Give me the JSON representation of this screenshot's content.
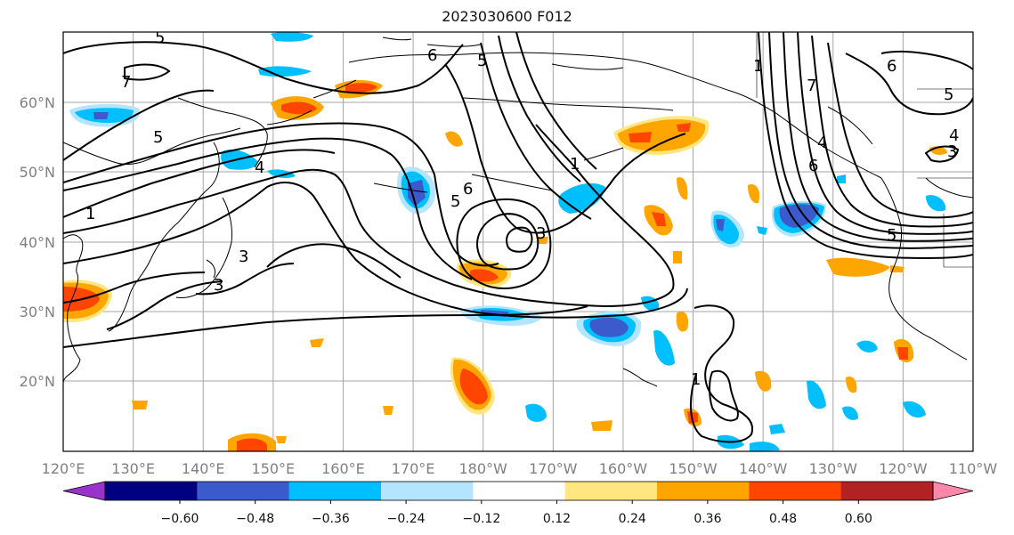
{
  "title": "2023030600 F012",
  "lat_labels": [
    "60°N",
    "50°N",
    "40°N",
    "30°N",
    "20°N"
  ],
  "lon_labels": [
    "120°E",
    "130°E",
    "140°E",
    "150°E",
    "160°E",
    "170°E",
    "180°W",
    "170°W",
    "160°W",
    "150°W",
    "140°W",
    "130°W",
    "120°W",
    "110°W"
  ],
  "contour_labels": [
    "5",
    "6",
    "7",
    "1",
    "5",
    "4",
    "3",
    "6",
    "5",
    "3",
    "1",
    "5",
    "6",
    "1",
    "3",
    "4",
    "5",
    "1",
    "7",
    "6",
    "4",
    "5",
    "3"
  ],
  "colorbar": {
    "colors": [
      "#9933cc",
      "#000080",
      "#3b5bcc",
      "#00bfff",
      "#b3e5ff",
      "#ffffff",
      "#ffe680",
      "#ffa500",
      "#ff4500",
      "#b22222",
      "#ff88aa"
    ],
    "tick_labels": [
      "−0.60",
      "−0.48",
      "−0.36",
      "−0.24",
      "−0.12",
      "0.12",
      "0.24",
      "0.36",
      "0.48",
      "0.60"
    ],
    "extend": "both"
  },
  "colors": {
    "coast": "#000000",
    "contour": "#000000",
    "grid": "#a6a6a6",
    "positive_light": "#ffe680",
    "positive_mid": "#ffa500",
    "positive_strong": "#ff4500",
    "negative_light": "#b3e5ff",
    "negative_mid": "#00bfff",
    "negative_strong": "#3b5bcc"
  }
}
